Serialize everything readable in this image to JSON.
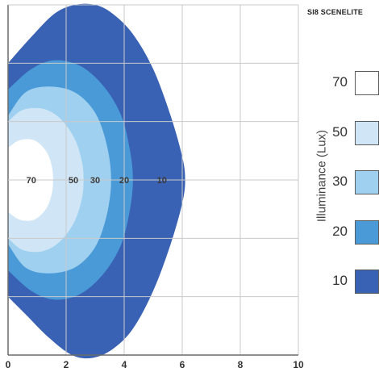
{
  "chart_data": {
    "type": "contour",
    "title": "SI8 SCENELITE",
    "legend_title": "Illuminance (Lux)",
    "x_ticks": [
      "0",
      "2",
      "4",
      "6",
      "8",
      "10"
    ],
    "xlim": [
      0,
      10
    ],
    "ylim": [
      -3,
      3
    ],
    "grid": true,
    "levels": [
      {
        "value": 70,
        "label": "70",
        "color": "#ffffff"
      },
      {
        "value": 50,
        "label": "50",
        "color": "#d0e6f6"
      },
      {
        "value": 30,
        "label": "30",
        "color": "#9fd0ef"
      },
      {
        "value": 20,
        "label": "20",
        "color": "#4a9ad8"
      },
      {
        "value": 10,
        "label": "10",
        "color": "#3a62b4"
      }
    ],
    "contours": [
      {
        "level": 10,
        "label": "10",
        "label_x": 5.3,
        "points": [
          [
            0,
            2.0
          ],
          [
            0.8,
            2.45
          ],
          [
            1.6,
            2.85
          ],
          [
            2.3,
            3.0
          ],
          [
            3.0,
            3.0
          ],
          [
            3.6,
            2.85
          ],
          [
            4.3,
            2.5
          ],
          [
            5.0,
            1.9
          ],
          [
            5.6,
            1.1
          ],
          [
            6.0,
            0.4
          ],
          [
            6.1,
            0
          ],
          [
            6.0,
            -0.4
          ],
          [
            5.6,
            -1.1
          ],
          [
            5.0,
            -1.9
          ],
          [
            4.3,
            -2.55
          ],
          [
            3.6,
            -2.9
          ],
          [
            2.9,
            -3.05
          ],
          [
            2.2,
            -3.0
          ],
          [
            1.4,
            -2.7
          ],
          [
            0.6,
            -2.3
          ],
          [
            0,
            -2.0
          ]
        ]
      },
      {
        "level": 20,
        "label": "20",
        "label_x": 4.0,
        "points": [
          [
            0,
            1.55
          ],
          [
            0.8,
            1.9
          ],
          [
            1.6,
            2.05
          ],
          [
            2.5,
            1.95
          ],
          [
            3.3,
            1.6
          ],
          [
            3.9,
            1.1
          ],
          [
            4.2,
            0.5
          ],
          [
            4.3,
            0
          ],
          [
            4.2,
            -0.5
          ],
          [
            3.9,
            -1.1
          ],
          [
            3.3,
            -1.6
          ],
          [
            2.5,
            -1.95
          ],
          [
            1.6,
            -2.05
          ],
          [
            0.8,
            -1.9
          ],
          [
            0,
            -1.55
          ]
        ]
      },
      {
        "level": 30,
        "label": "30",
        "label_x": 3.0,
        "points": [
          [
            0,
            1.1
          ],
          [
            0.6,
            1.5
          ],
          [
            1.4,
            1.6
          ],
          [
            2.3,
            1.5
          ],
          [
            3.0,
            1.15
          ],
          [
            3.4,
            0.6
          ],
          [
            3.55,
            0
          ],
          [
            3.4,
            -0.6
          ],
          [
            3.0,
            -1.15
          ],
          [
            2.3,
            -1.5
          ],
          [
            1.4,
            -1.6
          ],
          [
            0.6,
            -1.5
          ],
          [
            0,
            -1.1
          ]
        ]
      },
      {
        "level": 50,
        "label": "50",
        "label_x": 2.25,
        "points": [
          [
            0,
            1.0
          ],
          [
            0.5,
            1.2
          ],
          [
            1.2,
            1.22
          ],
          [
            1.8,
            1.05
          ],
          [
            2.3,
            0.7
          ],
          [
            2.55,
            0.3
          ],
          [
            2.6,
            0
          ],
          [
            2.55,
            -0.3
          ],
          [
            2.3,
            -0.7
          ],
          [
            1.8,
            -1.05
          ],
          [
            1.2,
            -1.22
          ],
          [
            0.5,
            -1.2
          ],
          [
            0,
            -1.0
          ]
        ]
      },
      {
        "level": 70,
        "label": "70",
        "label_x": 0.8,
        "points": [
          [
            0,
            0.55
          ],
          [
            0.4,
            0.68
          ],
          [
            0.9,
            0.68
          ],
          [
            1.3,
            0.5
          ],
          [
            1.5,
            0.25
          ],
          [
            1.55,
            0
          ],
          [
            1.5,
            -0.25
          ],
          [
            1.3,
            -0.5
          ],
          [
            0.9,
            -0.68
          ],
          [
            0.4,
            -0.68
          ],
          [
            0,
            -0.55
          ]
        ]
      }
    ]
  }
}
